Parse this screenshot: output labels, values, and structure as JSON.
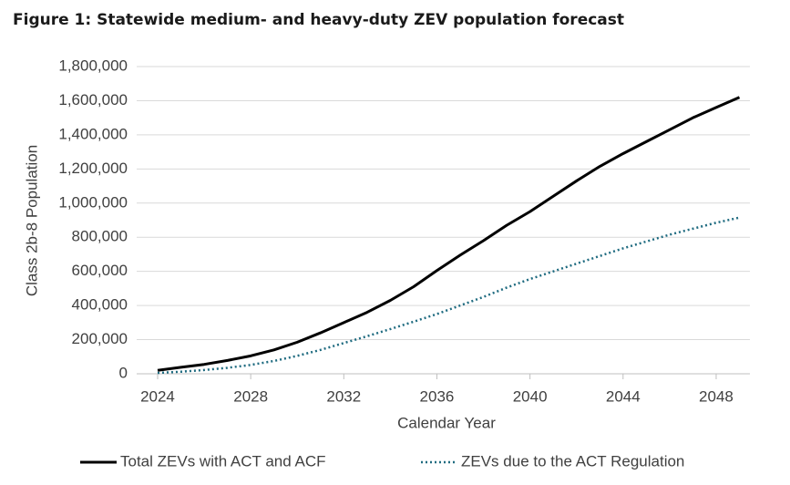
{
  "chart_data": {
    "type": "line",
    "title": "Figure 1: Statewide medium- and heavy-duty ZEV population forecast",
    "x_label": "Calendar Year",
    "y_label": "Class 2b-8 Population",
    "x": [
      2024,
      2025,
      2026,
      2027,
      2028,
      2029,
      2030,
      2031,
      2032,
      2033,
      2034,
      2035,
      2036,
      2037,
      2038,
      2039,
      2040,
      2041,
      2042,
      2043,
      2044,
      2045,
      2046,
      2047,
      2048,
      2049
    ],
    "series": [
      {
        "name": "Total ZEVs with ACT and ACF",
        "color": "#000000",
        "dash": false,
        "values": [
          20000,
          38000,
          55000,
          78000,
          105000,
          140000,
          185000,
          240000,
          300000,
          360000,
          430000,
          510000,
          605000,
          695000,
          780000,
          870000,
          950000,
          1040000,
          1130000,
          1215000,
          1290000,
          1360000,
          1430000,
          1500000,
          1560000,
          1620000
        ]
      },
      {
        "name": "ZEVs due to the ACT Regulation",
        "color": "#1f6b80",
        "dash": true,
        "values": [
          5000,
          12000,
          22000,
          35000,
          52000,
          75000,
          105000,
          140000,
          180000,
          220000,
          262000,
          305000,
          350000,
          400000,
          450000,
          505000,
          555000,
          600000,
          645000,
          690000,
          735000,
          775000,
          815000,
          850000,
          885000,
          915000
        ]
      }
    ],
    "xlim": [
      2023.1,
      2049.45
    ],
    "xticks": [
      2024,
      2028,
      2032,
      2036,
      2040,
      2044,
      2048
    ],
    "ylim": [
      0,
      1800000
    ],
    "yticks": [
      0,
      {
        "value": 200000,
        "label": "200,000"
      },
      {
        "value": 400000,
        "label": "400,000"
      },
      {
        "value": 600000,
        "label": "600,000"
      },
      {
        "value": 800000,
        "label": "800,000"
      },
      {
        "value": 1000000,
        "label": "1,000,000"
      },
      {
        "value": 1200000,
        "label": "1,200,000"
      },
      {
        "value": 1400000,
        "label": "1,400,000"
      },
      {
        "value": 1600000,
        "label": "1,600,000"
      },
      {
        "value": 1800000,
        "label": "1,800,000"
      }
    ],
    "grid": true
  }
}
